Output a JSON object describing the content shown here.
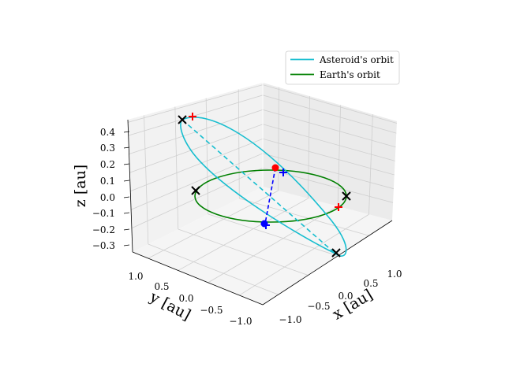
{
  "chart_data": {
    "type": "line3d",
    "axes": {
      "x": {
        "label": "x [au]",
        "ticks": [
          "−1.0",
          "−0.5",
          "0.0",
          "0.5",
          "1.0"
        ]
      },
      "y": {
        "label": "y [au]",
        "ticks": [
          "−1.0",
          "−0.5",
          "0.0",
          "0.5",
          "1.0"
        ]
      },
      "z": {
        "label": "z [au]",
        "ticks": [
          "−0.3",
          "−0.2",
          "−0.1",
          "0.0",
          "0.1",
          "0.2",
          "0.3",
          "0.4"
        ]
      }
    },
    "legend": {
      "placement": "top-right",
      "entries": [
        {
          "label": "Asteroid's orbit",
          "color": "#17becf"
        },
        {
          "label": "Earth's orbit",
          "color": "#008000"
        }
      ]
    },
    "series": [
      {
        "name": "Asteroid's orbit",
        "color": "#17becf"
      },
      {
        "name": "Earth's orbit",
        "color": "#008000"
      }
    ],
    "markers": [
      {
        "kind": "dot",
        "color": "#ff0000",
        "role": "earth-position"
      },
      {
        "kind": "dot",
        "color": "#0000ff",
        "role": "asteroid-position"
      },
      {
        "kind": "plus",
        "color": "#ff0000"
      },
      {
        "kind": "plus",
        "color": "#0000ff"
      },
      {
        "kind": "cross",
        "color": "#000000"
      }
    ],
    "grid": true
  }
}
